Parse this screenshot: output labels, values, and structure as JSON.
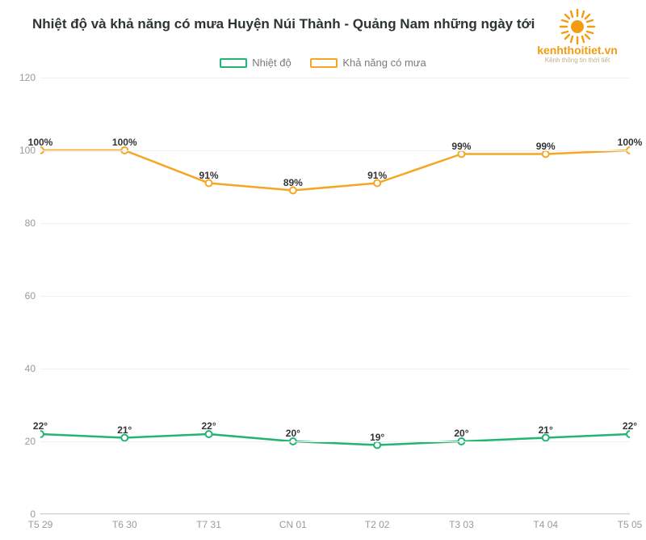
{
  "title": "Nhiệt độ và khả năng có mưa Huyện Núi Thành - Quảng Nam những ngày tới",
  "logo": {
    "text": "kenhthoitiet.vn",
    "subtext": "Kênh thông tin thời tiết",
    "color": "#f39c12"
  },
  "legend": {
    "s1": {
      "label": "Nhiệt độ",
      "color": "#21b573"
    },
    "s2": {
      "label": "Khả năng có mưa",
      "color": "#f5a623"
    }
  },
  "chart": {
    "type": "line",
    "background_color": "#ffffff",
    "grid_color": "#f0f0f0",
    "axis_color": "#d0d0d0",
    "tick_color": "#9a9a9a",
    "ylim": [
      0,
      120
    ],
    "ytick_step": 20,
    "yticks": [
      0,
      20,
      40,
      60,
      80,
      100,
      120
    ],
    "x_categories": [
      "T5 29",
      "T6 30",
      "T7 31",
      "CN 01",
      "T2 02",
      "T3 03",
      "T4 04",
      "T5 05"
    ],
    "series": {
      "temperature": {
        "color": "#21b573",
        "line_width": 2.5,
        "marker": "circle",
        "marker_size": 4,
        "marker_fill": "#ffffff",
        "marker_stroke": "#21b573",
        "values": [
          22,
          21,
          22,
          20,
          19,
          20,
          21,
          22
        ],
        "labels": [
          "22°",
          "21°",
          "22°",
          "20°",
          "19°",
          "20°",
          "21°",
          "22°"
        ]
      },
      "rain": {
        "color": "#f5a623",
        "line_width": 2.5,
        "marker": "circle",
        "marker_size": 4,
        "marker_fill": "#ffffff",
        "marker_stroke": "#f5a623",
        "values": [
          100,
          100,
          91,
          89,
          91,
          99,
          99,
          100
        ],
        "labels": [
          "100%",
          "100%",
          "91%",
          "89%",
          "91%",
          "99%",
          "99%",
          "100%"
        ]
      }
    },
    "label_fontsize": 12,
    "label_fontweight": "700",
    "label_color": "#333333"
  }
}
